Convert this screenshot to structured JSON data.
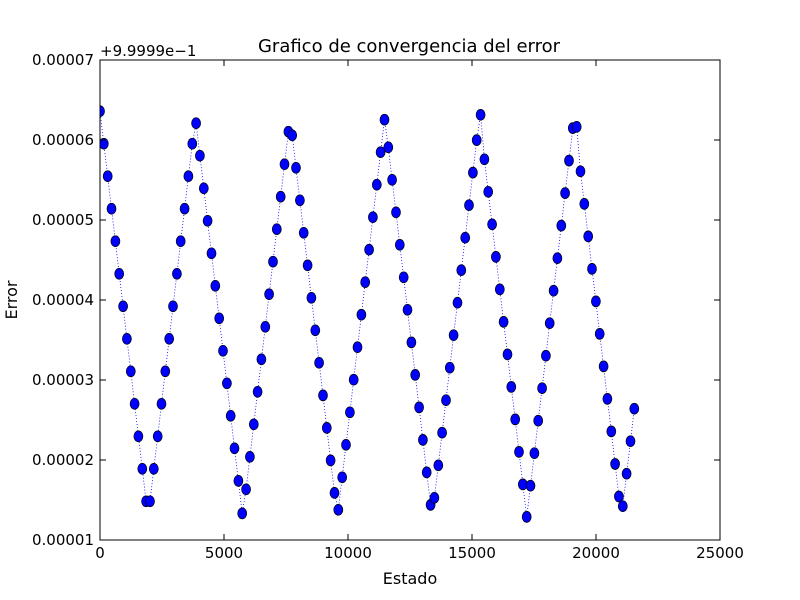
{
  "chart_data": {
    "type": "scatter",
    "title": "Grafico de convergencia del error",
    "xlabel": "Estado",
    "ylabel": "Error",
    "offset_label": "+9.9999e−1",
    "xlim": [
      0,
      25000
    ],
    "ylim": [
      1e-05,
      7e-05
    ],
    "x_ticks": [
      0,
      5000,
      10000,
      15000,
      20000,
      25000
    ],
    "x_tick_labels": [
      "0",
      "5000",
      "10000",
      "15000",
      "20000",
      "25000"
    ],
    "y_ticks": [
      1e-05,
      2e-05,
      3e-05,
      4e-05,
      5e-05,
      6e-05,
      7e-05
    ],
    "y_tick_labels": [
      "0.00001",
      "0.00002",
      "0.00003",
      "0.00004",
      "0.00005",
      "0.00006",
      "0.00007"
    ],
    "grid": false,
    "series": [
      {
        "marker": "circle",
        "line_style": "dotted",
        "color": "#0000ff",
        "x_range": [
          0,
          21600
        ],
        "y_min": 1.28e-05,
        "y_max": 6.36e-05,
        "x_step": 155,
        "period": 25
      }
    ]
  },
  "colors": {
    "marker_fill": "#0000ff",
    "marker_edge": "#000000",
    "line": "#0000ff",
    "axes": "#000000",
    "background": "#ffffff"
  }
}
